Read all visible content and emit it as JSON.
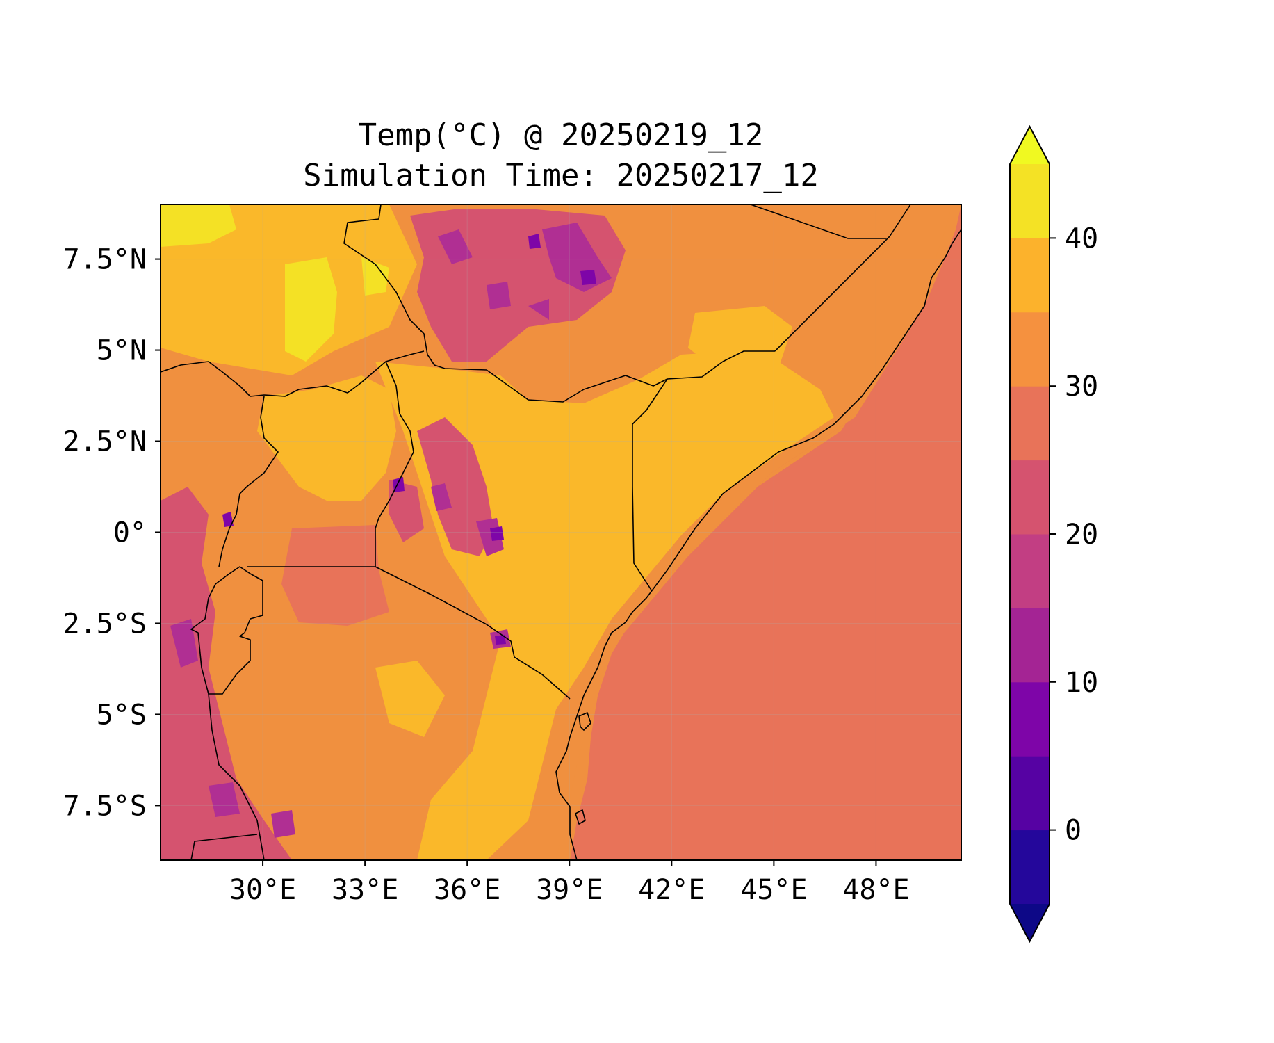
{
  "title": "Temp(°C) @ 20250219_12",
  "subtitle": "Simulation Time: 20250217_12",
  "map": {
    "type": "filled-contour",
    "variable": "Temperature",
    "unit": "°C",
    "lon_range": [
      27.0,
      50.5
    ],
    "lat_range": [
      -9.0,
      9.0
    ],
    "lon_ticks": [
      {
        "value": 30,
        "label": "30°E"
      },
      {
        "value": 33,
        "label": "33°E"
      },
      {
        "value": 36,
        "label": "36°E"
      },
      {
        "value": 39,
        "label": "39°E"
      },
      {
        "value": 42,
        "label": "42°E"
      },
      {
        "value": 45,
        "label": "45°E"
      },
      {
        "value": 48,
        "label": "48°E"
      }
    ],
    "lat_ticks": [
      {
        "value": 7.5,
        "label": "7.5°N"
      },
      {
        "value": 5,
        "label": "5°N"
      },
      {
        "value": 2.5,
        "label": "2.5°N"
      },
      {
        "value": 0,
        "label": "0°"
      },
      {
        "value": -2.5,
        "label": "2.5°S"
      },
      {
        "value": -5,
        "label": "5°S"
      },
      {
        "value": -7.5,
        "label": "7.5°S"
      }
    ],
    "gridlines": true,
    "colors": {
      "ocean": "#e87359",
      "land_base": "#f0903f",
      "warm_land": "#fab82a",
      "hot_land": "#f4e125",
      "cool_highland": "#d5536f",
      "cold_highland": "#b02f93",
      "very_cold": "#7e05a8",
      "border": "#000000"
    }
  },
  "colorbar": {
    "levels": [
      -5,
      0,
      5,
      10,
      15,
      20,
      25,
      30,
      35,
      40,
      45
    ],
    "colors": [
      "#24079b",
      "#5602a3",
      "#7e05a8",
      "#a42494",
      "#c23e83",
      "#d5536f",
      "#e87359",
      "#f5913f",
      "#fcb22c",
      "#f4e225"
    ],
    "under_color": "#0d0887",
    "over_color": "#f0f921",
    "extend": "both",
    "ticks": [
      {
        "value": 0,
        "label": "0"
      },
      {
        "value": 10,
        "label": "10"
      },
      {
        "value": 20,
        "label": "20"
      },
      {
        "value": 30,
        "label": "30"
      },
      {
        "value": 40,
        "label": "40"
      }
    ]
  }
}
